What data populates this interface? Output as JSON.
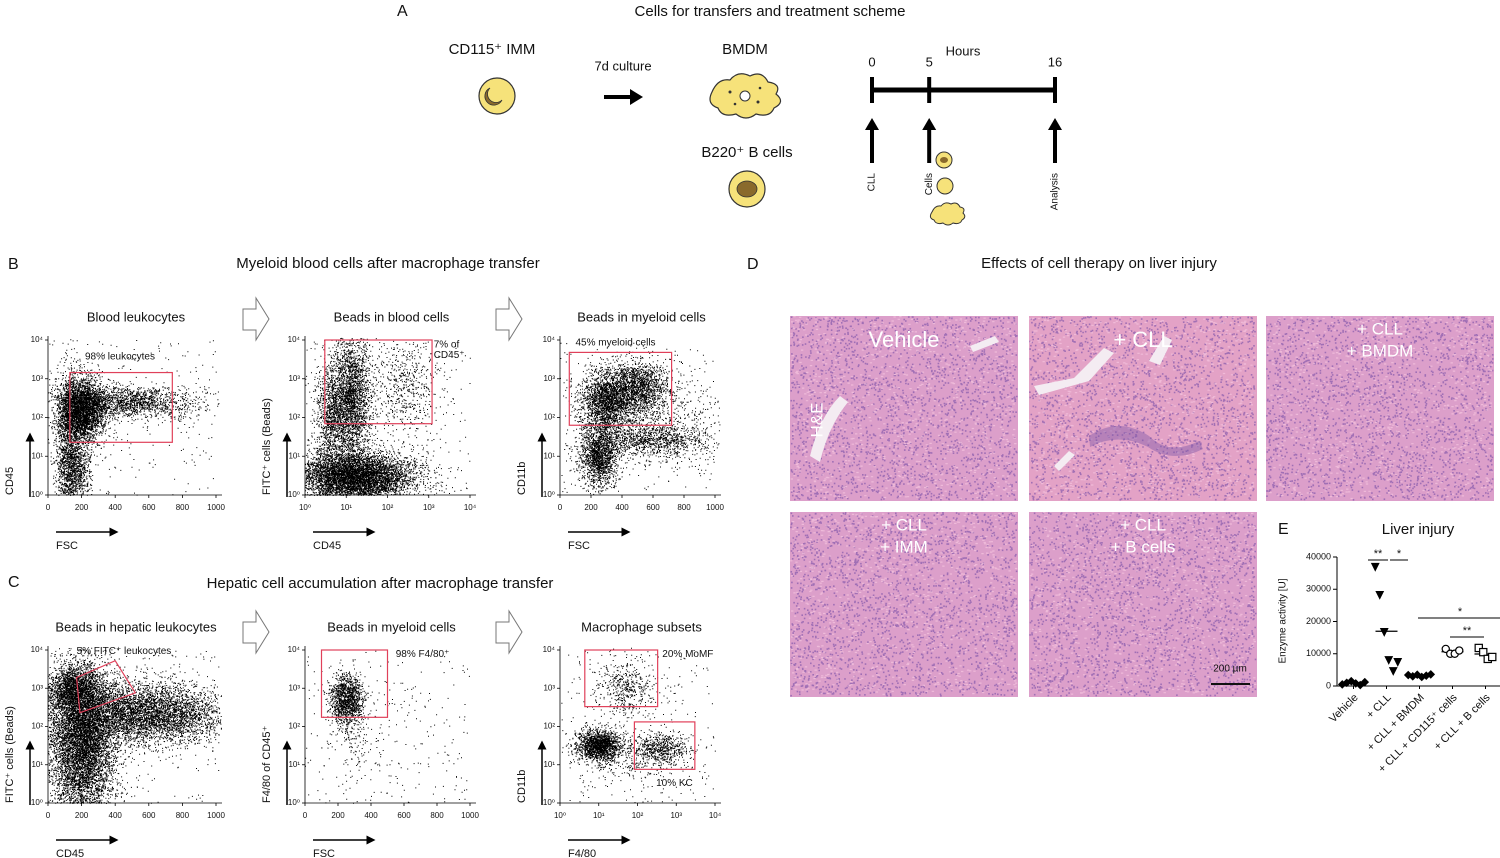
{
  "figure": {
    "a": {
      "letter": "A",
      "title": "Cells for transfers and treatment scheme",
      "imm": "CD115⁺ IMM",
      "culture": "7d culture",
      "bmdm": "BMDM",
      "bcells": "B220⁺ B cells",
      "timeline": {
        "label": "Hours",
        "ticks": [
          0,
          5,
          16
        ],
        "xlim": [
          0,
          16
        ],
        "events": [
          "CLL",
          "Cells",
          "Analysis"
        ]
      }
    },
    "b": {
      "letter": "B",
      "title": "Myeloid blood cells after macrophage transfer",
      "plots": [
        {
          "title": "Blood leukocytes",
          "gate_label": [
            "98% leukocytes"
          ],
          "x_label": "FSC",
          "y_label": "CD45",
          "xscale": "linear",
          "xlim": [
            0,
            1000
          ],
          "xticks": [
            0,
            200,
            400,
            600,
            800,
            1000
          ],
          "yscale": "log",
          "ylim": [
            1,
            10000
          ],
          "yticks": [
            {
              "value": 1,
              "label": "10⁰"
            },
            {
              "value": 10,
              "label": "10¹"
            },
            {
              "value": 100,
              "label": "10²"
            },
            {
              "value": 1000,
              "label": "10³"
            },
            {
              "value": 10000,
              "label": "10⁴"
            }
          ]
        },
        {
          "title": "Beads in blood cells",
          "gate_label": [
            "7% of",
            "CD45⁺"
          ],
          "x_label": "CD45",
          "y_label": "FITC⁺ cells (Beads)",
          "xscale": "log",
          "xlim": [
            1,
            10000
          ],
          "xticks": [
            {
              "value": 1,
              "label": "10⁰"
            },
            {
              "value": 10,
              "label": "10¹"
            },
            {
              "value": 100,
              "label": "10²"
            },
            {
              "value": 1000,
              "label": "10³"
            },
            {
              "value": 10000,
              "label": "10⁴"
            }
          ],
          "yscale": "log",
          "ylim": [
            1,
            10000
          ],
          "yticks": [
            {
              "value": 1,
              "label": "10⁰"
            },
            {
              "value": 10,
              "label": "10¹"
            },
            {
              "value": 100,
              "label": "10²"
            },
            {
              "value": 1000,
              "label": "10³"
            },
            {
              "value": 10000,
              "label": "10⁴"
            }
          ]
        },
        {
          "title": "Beads in myeloid cells",
          "gate_label": [
            "45% myeloid cells"
          ],
          "x_label": "FSC",
          "y_label": "CD11b",
          "xscale": "linear",
          "xlim": [
            0,
            1000
          ],
          "xticks": [
            0,
            200,
            400,
            600,
            800,
            1000
          ],
          "yscale": "log",
          "ylim": [
            1,
            10000
          ],
          "yticks": [
            {
              "value": 1,
              "label": "10⁰"
            },
            {
              "value": 10,
              "label": "10¹"
            },
            {
              "value": 100,
              "label": "10²"
            },
            {
              "value": 1000,
              "label": "10³"
            },
            {
              "value": 10000,
              "label": "10⁴"
            }
          ]
        }
      ]
    },
    "c": {
      "letter": "C",
      "title": "Hepatic cell accumulation after macrophage transfer",
      "plots": [
        {
          "title": "Beads in hepatic leukocytes",
          "gate_label": [
            "5% FITC⁺ leukocytes"
          ],
          "x_label": "CD45",
          "y_label": "FITC⁺ cells (Beads)",
          "xscale": "linear",
          "xlim": [
            0,
            1000
          ],
          "xticks": [
            0,
            200,
            400,
            600,
            800,
            1000
          ],
          "yscale": "log",
          "ylim": [
            1,
            10000
          ],
          "yticks": [
            {
              "value": 1,
              "label": "10⁰"
            },
            {
              "value": 10,
              "label": "10¹"
            },
            {
              "value": 100,
              "label": "10²"
            },
            {
              "value": 1000,
              "label": "10³"
            },
            {
              "value": 10000,
              "label": "10⁴"
            }
          ]
        },
        {
          "title": "Beads in myeloid cells",
          "gate_label": [
            "98% F4/80⁺"
          ],
          "x_label": "FSC",
          "y_label": "F4/80 of CD45⁺",
          "xscale": "linear",
          "xlim": [
            0,
            1000
          ],
          "xticks": [
            0,
            200,
            400,
            600,
            800,
            1000
          ],
          "yscale": "log",
          "ylim": [
            1,
            10000
          ],
          "yticks": [
            {
              "value": 1,
              "label": "10⁰"
            },
            {
              "value": 10,
              "label": "10¹"
            },
            {
              "value": 100,
              "label": "10²"
            },
            {
              "value": 1000,
              "label": "10³"
            },
            {
              "value": 10000,
              "label": "10⁴"
            }
          ]
        },
        {
          "title": "Macrophage subsets",
          "gate_label": [
            "20% MoMF",
            "10% KC"
          ],
          "x_label": "F4/80",
          "y_label": "CD11b",
          "xscale": "log",
          "xlim": [
            1,
            10000
          ],
          "xticks": [
            {
              "value": 1,
              "label": "10⁰"
            },
            {
              "value": 10,
              "label": "10¹"
            },
            {
              "value": 100,
              "label": "10²"
            },
            {
              "value": 1000,
              "label": "10³"
            },
            {
              "value": 10000,
              "label": "10⁴"
            }
          ],
          "yscale": "log",
          "ylim": [
            1,
            10000
          ],
          "yticks": [
            {
              "value": 1,
              "label": "10⁰"
            },
            {
              "value": 10,
              "label": "10¹"
            },
            {
              "value": 100,
              "label": "10²"
            },
            {
              "value": 1000,
              "label": "10³"
            },
            {
              "value": 10000,
              "label": "10⁴"
            }
          ]
        }
      ]
    },
    "d": {
      "letter": "D",
      "title": "Effects of cell therapy on liver injury",
      "stain": "H&E",
      "scale_bar": "200 µm",
      "images": [
        [
          "Vehicle"
        ],
        [
          "+ CLL"
        ],
        [
          "+ CLL",
          "+ BMDM"
        ],
        [
          "+ CLL",
          "+ IMM"
        ],
        [
          "+ CLL",
          "+ B cells"
        ]
      ]
    },
    "e": {
      "letter": "E"
    }
  },
  "chart_data": {
    "type": "dot",
    "title": "Liver injury",
    "y_label": "Enzyme activity [U]",
    "categories": [
      "Vehicle",
      "+ CLL",
      "+ CLL + BMDM",
      "+ CLL + CD115⁺ cells",
      "+ CLL + B cells"
    ],
    "values": [
      [
        500,
        1000,
        1500,
        800,
        300,
        1200
      ],
      [
        36900,
        28200,
        16700,
        8000,
        4600,
        7400
      ],
      [
        3400,
        3000,
        3500,
        2800,
        3200,
        3600
      ],
      [
        11500,
        10000,
        10000,
        11000
      ],
      [
        11800,
        10500,
        8400,
        9000
      ]
    ],
    "markers": [
      "diamond",
      "triangle-down",
      "diamond",
      "circle-open",
      "square-open"
    ],
    "color": "#000000",
    "ylim": [
      0,
      40000
    ],
    "yticks": [
      0,
      10000,
      20000,
      30000,
      40000
    ],
    "significance": [
      "**",
      "*",
      "*",
      "**"
    ]
  }
}
